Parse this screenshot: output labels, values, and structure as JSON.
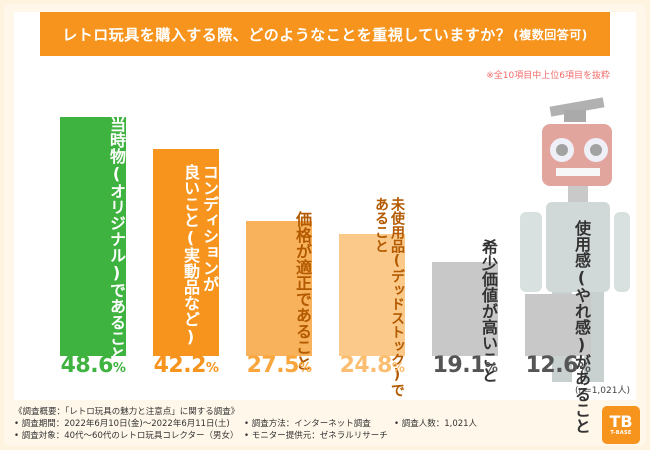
{
  "chart_data": {
    "type": "bar",
    "title": "レトロ玩具を購入する際、どのようなことを重視していますか？",
    "title_suffix": "(複数回答可)",
    "note": "※全10項目中上位6項目を抜粋",
    "ylim": [
      0,
      55
    ],
    "unit": "%",
    "sample_size": "(n=1,021人)",
    "categories": [
      "当時物(オリジナル)であること",
      "コンディションが\n良いこと(実動品など)",
      "価格が適正であること",
      "未使用品(デッドストック)で\nあること",
      "希少価値が高いこと",
      "使用感(やれ感)があること"
    ],
    "values": [
      48.6,
      42.2,
      27.5,
      24.8,
      19.1,
      12.6
    ],
    "value_labels": [
      "48.6",
      "42.2",
      "27.5",
      "24.8",
      "19.1",
      "12.6"
    ],
    "colors": {
      "bar_fill": [
        "#3fb33f",
        "#f7941d",
        "#f9b25c",
        "#fbc989",
        "#c8c8c8",
        "#c8c8c8"
      ],
      "label_text": [
        "#ffffff",
        "#ffffff",
        "#b35a00",
        "#b35a00",
        "#333333",
        "#333333"
      ],
      "value_text": [
        "#3fb33f",
        "#f7941d",
        "#f9a63c",
        "#fbbd6f",
        "#555555",
        "#555555"
      ]
    }
  },
  "footer": {
    "heading": "《調査概要：「レトロ玩具の魅力と注意点」に関する調査》",
    "period": "• 調査期間：2022年6月10日(金)〜2022年6月11日(土)",
    "method": "• 調査方法：インターネット調査",
    "count": "• 調査人数：1,021人",
    "target": "• 調査対象：40代〜60代のレトロ玩具コレクター（男女）",
    "provider": "• モニター提供元：ゼネラルリサーチ"
  },
  "logo": {
    "mark": "TB",
    "word": "T-BASE"
  }
}
